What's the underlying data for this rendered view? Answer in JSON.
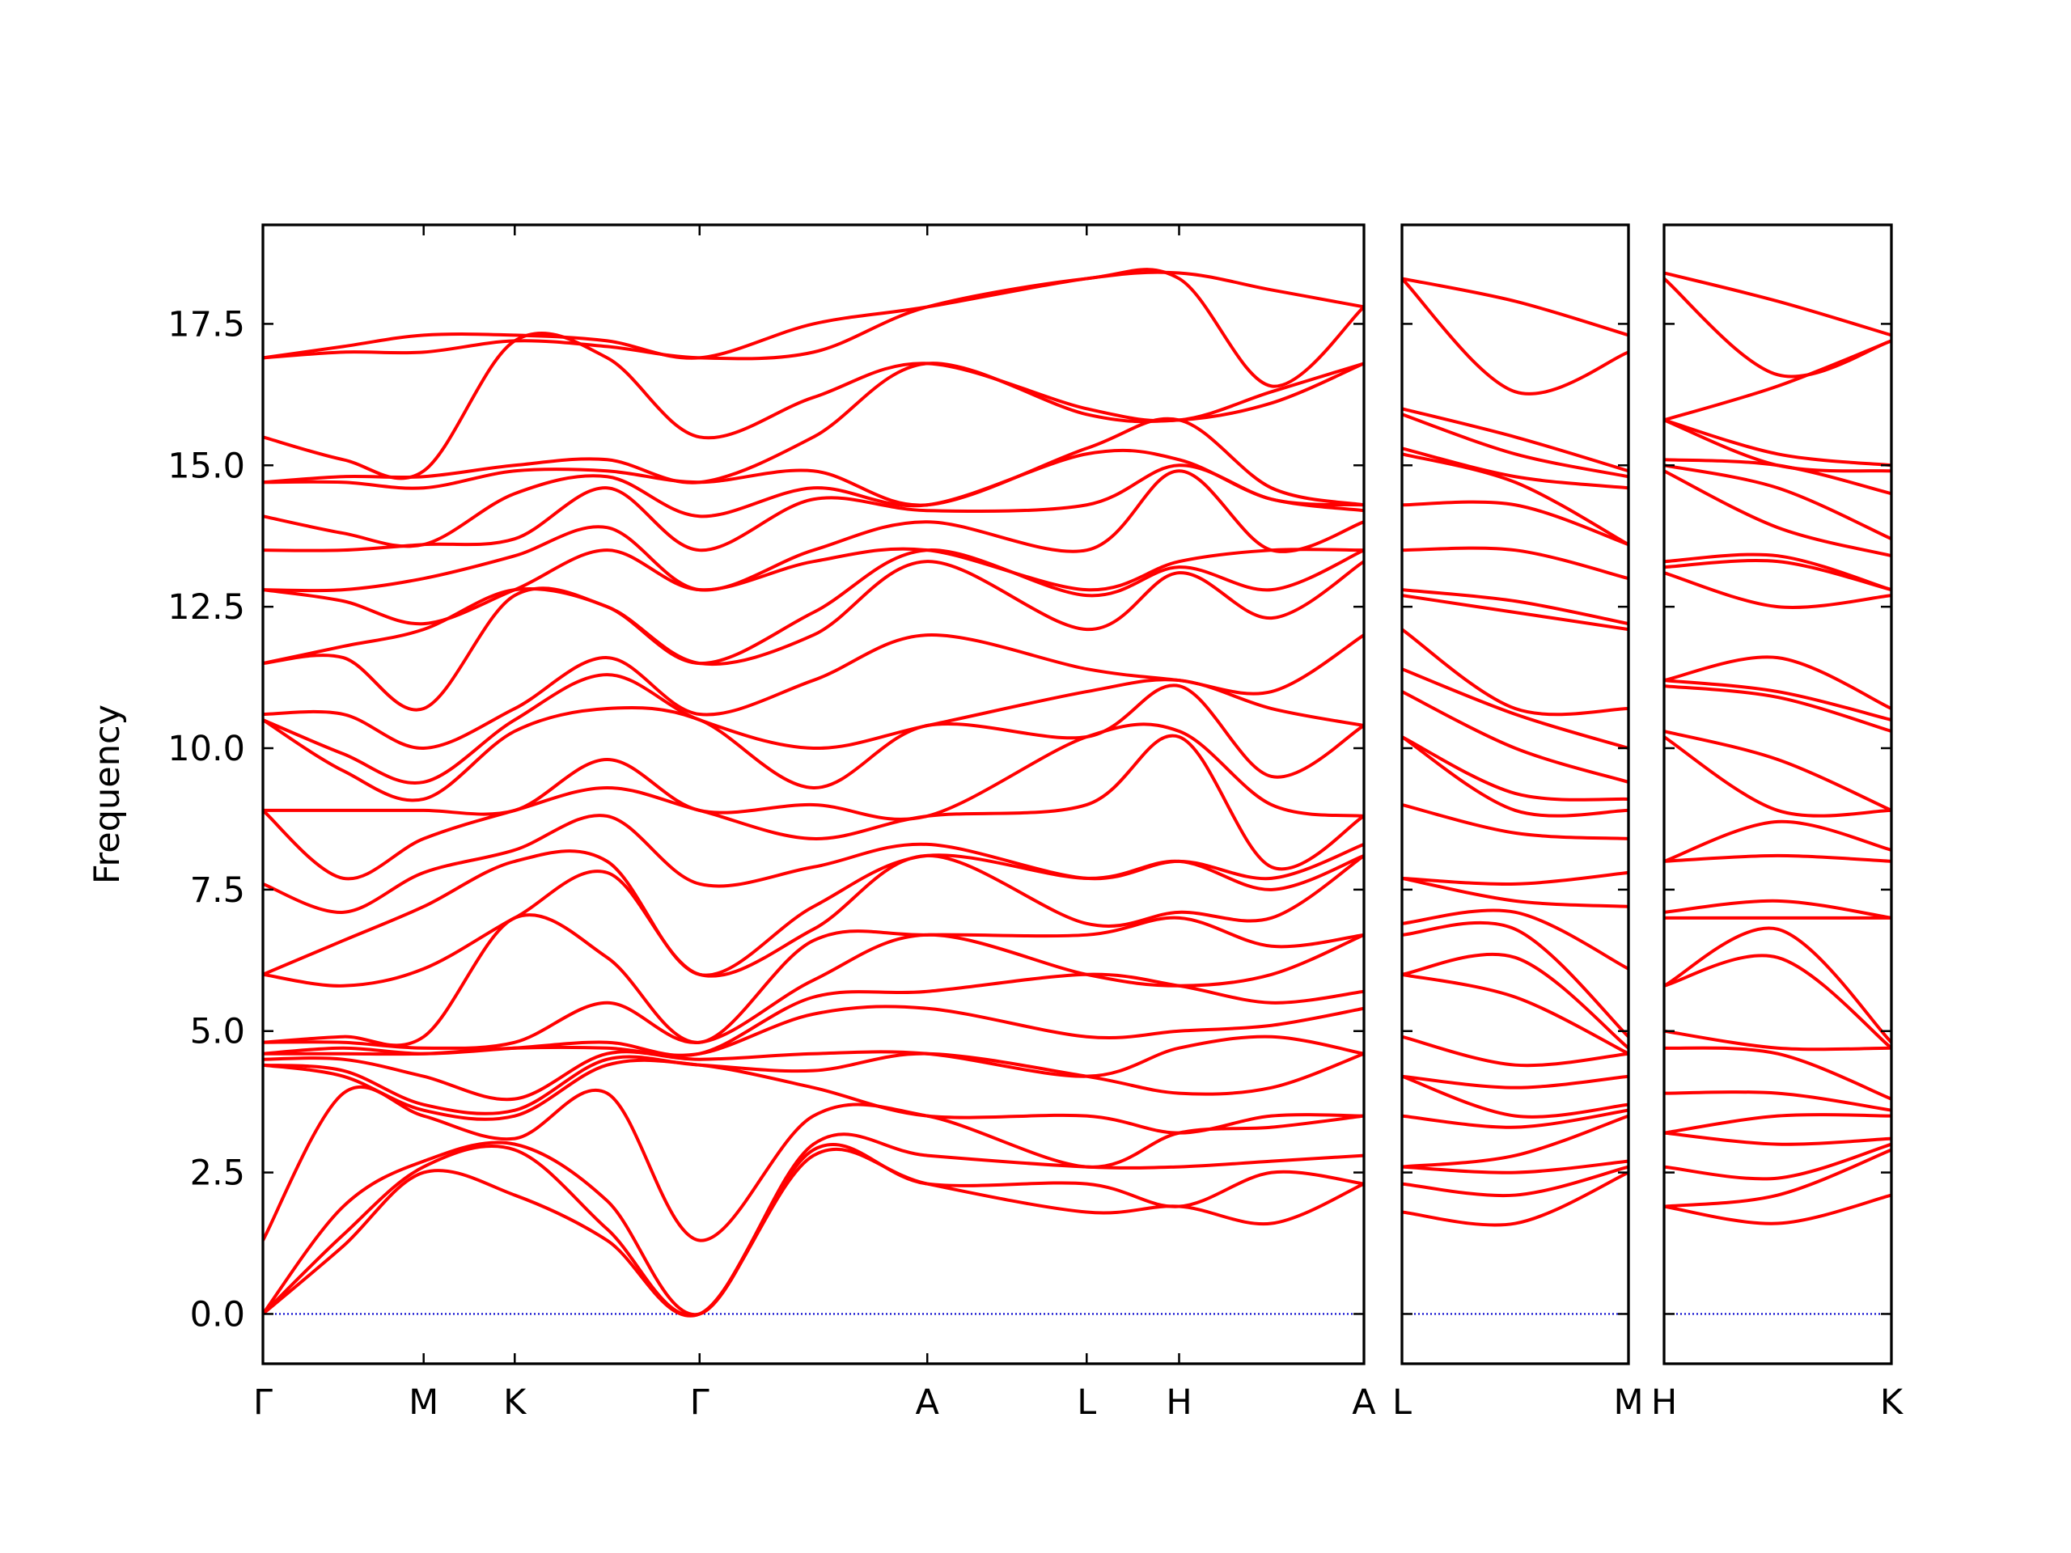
{
  "chart_data": [
    {
      "type": "line",
      "ylabel": "Frequency",
      "color": "#ff0000",
      "zero_line": {
        "y": 0,
        "color": "#0000cc"
      },
      "xlim": [
        0,
        8.22
      ],
      "ylim": [
        -0.88,
        19.25
      ],
      "xticks": [
        {
          "value": 0,
          "label": "Γ"
        },
        {
          "value": 1.2,
          "label": "M"
        },
        {
          "value": 1.88,
          "label": "K"
        },
        {
          "value": 3.26,
          "label": "Γ"
        },
        {
          "value": 4.96,
          "label": "A"
        },
        {
          "value": 6.15,
          "label": "L"
        },
        {
          "value": 6.84,
          "label": "H"
        },
        {
          "value": 8.22,
          "label": "A"
        }
      ],
      "yticks": [
        {
          "value": 0,
          "label": "0.0"
        },
        2.5,
        {
          "value": 5,
          "label": "5.0"
        },
        7.5,
        {
          "value": 10,
          "label": "10.0"
        },
        12.5,
        {
          "value": 15,
          "label": "15.0"
        },
        17.5
      ],
      "x": [
        0,
        0.6,
        1.2,
        1.88,
        2.57,
        3.26,
        4.11,
        4.96,
        6.15,
        6.84,
        7.53,
        8.22
      ],
      "values": [
        [
          0,
          0,
          0,
          1.3,
          4.4,
          4.4,
          4.5,
          4.6,
          4.6,
          4.8,
          4.8,
          6.0,
          6.0,
          7.6,
          8.9,
          8.9,
          10.5,
          10.5,
          10.6,
          11.5,
          11.5,
          12.8,
          12.8,
          13.5,
          14.1,
          14.7,
          14.7,
          15.5,
          16.9,
          16.9
        ],
        [
          1.2,
          1.4,
          1.9,
          3.9,
          4.2,
          4.3,
          4.5,
          4.6,
          4.7,
          4.8,
          4.9,
          5.8,
          6.6,
          7.1,
          7.7,
          8.9,
          9.6,
          9.9,
          10.6,
          11.6,
          11.8,
          12.6,
          12.8,
          13.5,
          13.8,
          14.7,
          14.8,
          15.1,
          17.0,
          17.1
        ],
        [
          2.5,
          2.6,
          2.7,
          3.5,
          3.6,
          3.7,
          4.2,
          4.6,
          4.6,
          4.7,
          4.9,
          6.1,
          7.2,
          7.8,
          8.4,
          8.9,
          9.1,
          9.4,
          10.0,
          10.7,
          12.1,
          12.2,
          13.0,
          13.6,
          13.6,
          14.6,
          14.8,
          14.9,
          17.0,
          17.3
        ],
        [
          2.1,
          2.9,
          3.0,
          3.1,
          3.5,
          3.6,
          3.8,
          4.7,
          4.7,
          4.8,
          7.0,
          7.0,
          8.0,
          8.2,
          8.9,
          8.9,
          10.3,
          10.5,
          10.7,
          12.7,
          12.8,
          12.8,
          13.4,
          13.7,
          14.5,
          14.9,
          15.0,
          17.2,
          17.2,
          17.3
        ],
        [
          1.3,
          1.5,
          2.0,
          3.9,
          4.4,
          4.5,
          4.6,
          4.7,
          4.8,
          5.5,
          6.3,
          7.8,
          8.0,
          8.8,
          9.3,
          9.8,
          10.7,
          11.3,
          11.6,
          12.5,
          12.5,
          13.5,
          13.9,
          14.6,
          14.8,
          14.9,
          15.1,
          16.9,
          17.1,
          17.2
        ],
        [
          0,
          0,
          0,
          1.3,
          4.4,
          4.4,
          4.5,
          4.6,
          4.6,
          4.8,
          4.8,
          6.0,
          6.0,
          7.6,
          8.9,
          8.9,
          10.5,
          10.5,
          10.6,
          11.5,
          11.5,
          12.8,
          12.8,
          13.5,
          14.1,
          14.7,
          14.7,
          15.5,
          16.9,
          16.9
        ],
        [
          2.8,
          2.9,
          3.0,
          3.5,
          4.0,
          4.3,
          4.6,
          5.3,
          5.6,
          5.9,
          6.6,
          6.8,
          7.2,
          7.9,
          8.4,
          9.0,
          9.3,
          10.0,
          11.2,
          12.0,
          12.4,
          13.3,
          13.5,
          14.4,
          14.6,
          14.9,
          15.5,
          16.2,
          17.0,
          17.5
        ],
        [
          2.3,
          2.3,
          2.8,
          3.5,
          3.5,
          4.6,
          4.6,
          5.4,
          5.7,
          6.7,
          6.7,
          8.1,
          8.1,
          8.3,
          8.8,
          8.8,
          10.4,
          10.4,
          12.0,
          13.3,
          13.5,
          13.5,
          14.0,
          14.2,
          14.3,
          14.3,
          16.8,
          16.8,
          17.8,
          17.8
        ],
        [
          1.8,
          2.3,
          2.6,
          2.6,
          3.5,
          4.2,
          4.2,
          4.9,
          6.0,
          6.0,
          6.7,
          6.9,
          7.7,
          7.7,
          9.0,
          10.2,
          10.2,
          11.0,
          11.4,
          12.1,
          12.7,
          12.8,
          13.5,
          14.3,
          15.2,
          15.3,
          15.9,
          16.0,
          18.3,
          18.3
        ],
        [
          1.9,
          1.9,
          2.6,
          3.2,
          3.2,
          3.9,
          4.7,
          5.0,
          5.8,
          5.8,
          7.0,
          7.1,
          8.0,
          8.0,
          10.2,
          10.3,
          11.1,
          11.2,
          11.2,
          13.1,
          13.2,
          13.3,
          14.9,
          15.0,
          15.1,
          15.8,
          15.8,
          15.8,
          18.3,
          18.4
        ],
        [
          1.6,
          2.5,
          2.7,
          3.3,
          3.5,
          4.0,
          4.9,
          5.1,
          5.5,
          6.0,
          6.5,
          7.0,
          7.5,
          7.7,
          7.9,
          9.0,
          9.5,
          10.7,
          11.0,
          12.3,
          12.8,
          13.5,
          13.5,
          14.4,
          14.4,
          14.6,
          16.1,
          16.3,
          16.4,
          18.1
        ],
        [
          2.3,
          2.3,
          2.8,
          3.5,
          3.5,
          4.6,
          4.6,
          5.4,
          5.7,
          6.7,
          6.7,
          8.1,
          8.1,
          8.3,
          8.8,
          8.8,
          10.4,
          10.4,
          12.0,
          13.3,
          13.5,
          13.5,
          14.0,
          14.2,
          14.3,
          14.3,
          16.8,
          16.8,
          17.8,
          17.8
        ]
      ]
    },
    {
      "type": "line",
      "color": "#ff0000",
      "zero_line": {
        "y": 0,
        "color": "#0000cc"
      },
      "xlim": [
        0,
        1.69
      ],
      "ylim": [
        -0.88,
        19.25
      ],
      "xticks": [
        {
          "value": 0,
          "label": "L"
        },
        {
          "value": 1.69,
          "label": "M"
        }
      ],
      "yticks": [
        0,
        2.5,
        5,
        7.5,
        10,
        12.5,
        15,
        17.5
      ],
      "x": [
        0,
        0.845,
        1.69
      ],
      "values": [
        [
          1.8,
          2.3,
          2.6,
          2.6,
          3.5,
          4.2,
          4.2,
          4.9,
          6.0,
          6.0,
          6.7,
          6.9,
          7.7,
          7.7,
          9.0,
          10.2,
          10.2,
          11.0,
          11.4,
          12.1,
          12.7,
          12.8,
          13.5,
          14.3,
          15.2,
          15.3,
          15.9,
          16.0,
          18.3,
          18.3
        ],
        [
          1.6,
          2.1,
          2.5,
          2.8,
          3.3,
          3.5,
          4.0,
          4.4,
          5.6,
          6.3,
          6.8,
          7.1,
          7.3,
          7.6,
          8.5,
          8.9,
          9.2,
          10.0,
          10.6,
          10.7,
          12.4,
          12.6,
          13.5,
          14.3,
          14.7,
          14.8,
          15.2,
          15.5,
          16.3,
          17.9
        ],
        [
          2.5,
          2.6,
          2.7,
          3.5,
          3.6,
          3.7,
          4.2,
          4.6,
          4.6,
          4.7,
          4.9,
          6.1,
          7.2,
          7.8,
          8.4,
          8.9,
          9.1,
          9.4,
          10.0,
          10.7,
          12.1,
          12.2,
          13.0,
          13.6,
          13.6,
          14.6,
          14.8,
          14.9,
          17.0,
          17.3
        ]
      ]
    },
    {
      "type": "line",
      "color": "#ff0000",
      "zero_line": {
        "y": 0,
        "color": "#0000cc"
      },
      "xlim": [
        0,
        1.69
      ],
      "ylim": [
        -0.88,
        19.25
      ],
      "xticks": [
        {
          "value": 0,
          "label": "H"
        },
        {
          "value": 1.69,
          "label": "K"
        }
      ],
      "yticks": [
        0,
        2.5,
        5,
        7.5,
        10,
        12.5,
        15,
        17.5
      ],
      "x": [
        0,
        0.845,
        1.69
      ],
      "values": [
        [
          1.9,
          1.9,
          2.6,
          3.2,
          3.2,
          3.9,
          4.7,
          5.0,
          5.8,
          5.8,
          7.0,
          7.1,
          8.0,
          8.0,
          10.2,
          10.3,
          11.1,
          11.2,
          11.2,
          13.1,
          13.2,
          13.3,
          14.9,
          15.0,
          15.1,
          15.8,
          15.8,
          15.8,
          18.3,
          18.4
        ],
        [
          1.6,
          2.1,
          2.4,
          3.0,
          3.5,
          3.9,
          4.6,
          4.7,
          6.3,
          6.8,
          7.0,
          7.3,
          8.1,
          8.7,
          8.9,
          9.8,
          10.9,
          11.0,
          11.6,
          12.5,
          13.3,
          13.4,
          13.9,
          14.6,
          15.0,
          15.0,
          15.2,
          16.4,
          16.6,
          17.9
        ],
        [
          2.1,
          2.9,
          3.0,
          3.1,
          3.5,
          3.6,
          3.8,
          4.7,
          4.7,
          4.8,
          7.0,
          7.0,
          8.0,
          8.2,
          8.9,
          8.9,
          10.3,
          10.5,
          10.7,
          12.7,
          12.8,
          12.8,
          13.4,
          13.7,
          14.5,
          14.9,
          15.0,
          17.2,
          17.2,
          17.3
        ]
      ]
    }
  ]
}
